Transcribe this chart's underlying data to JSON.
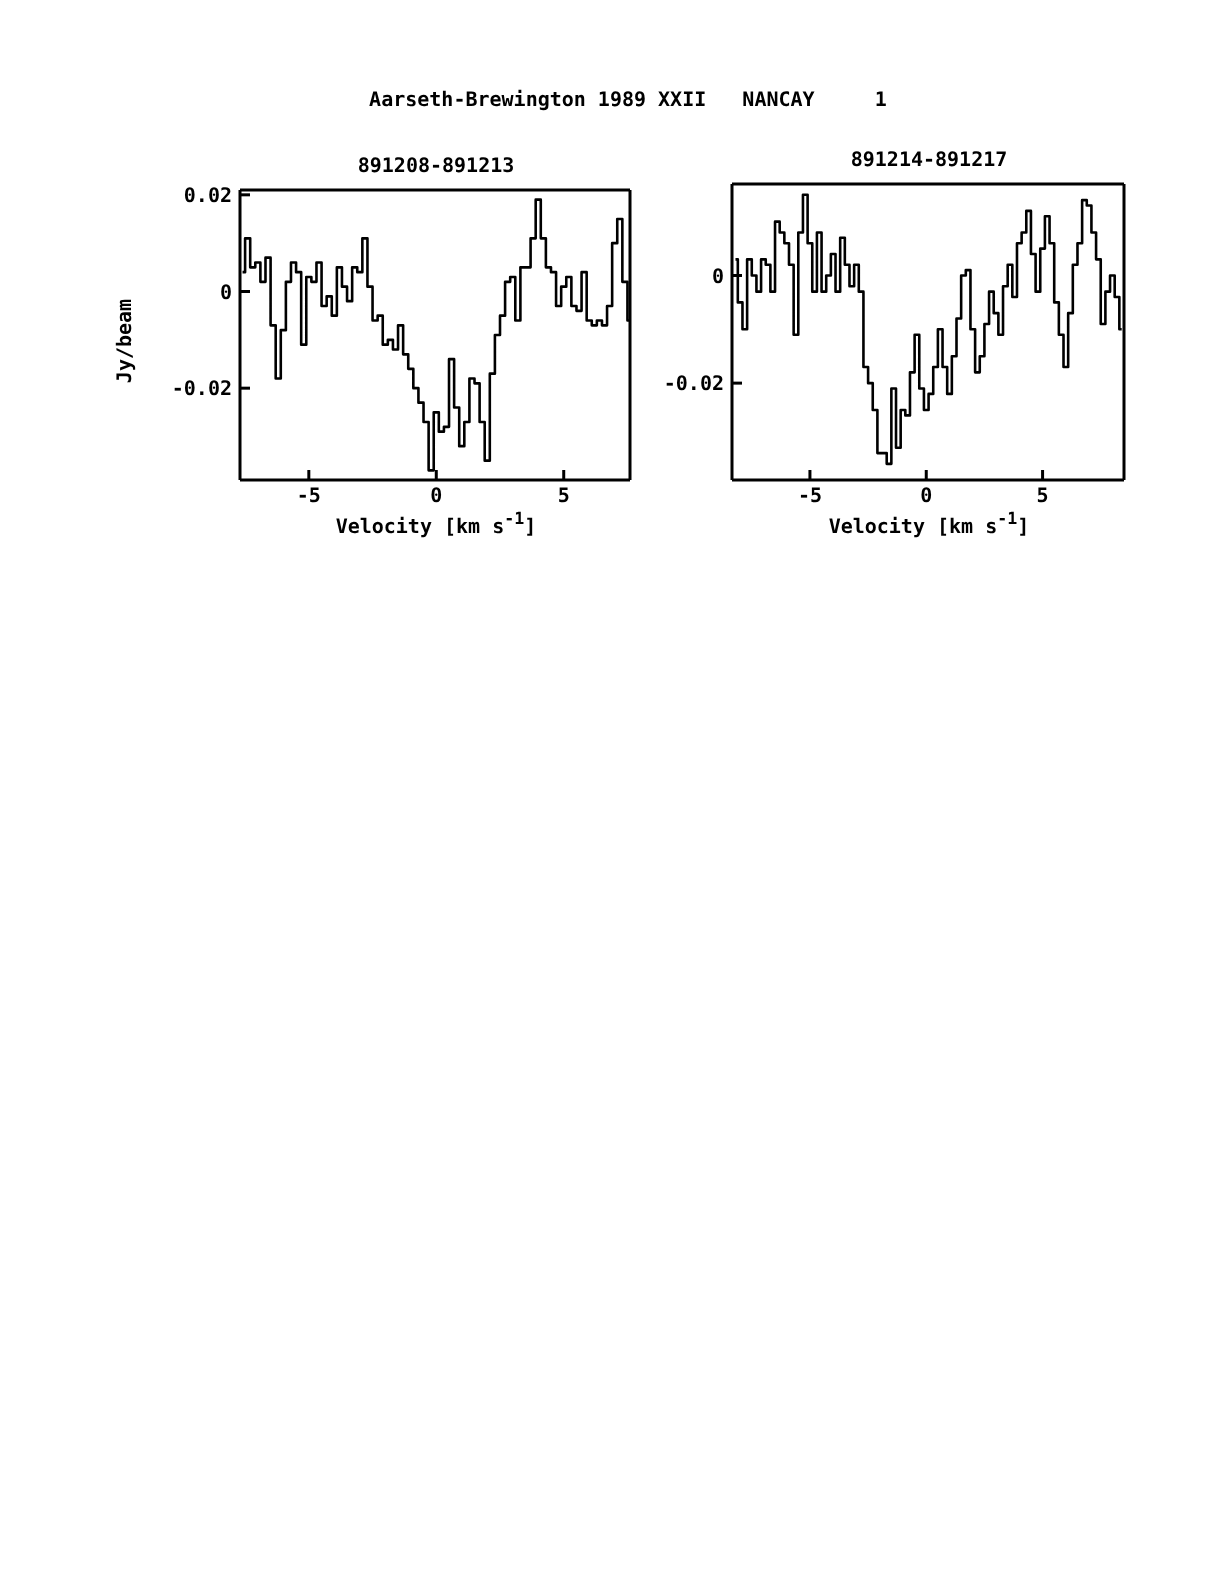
{
  "chart_data": [
    {
      "type": "step",
      "annotations": [
        "Aarseth-Brewington 1989 XXII   NANCAY     1"
      ],
      "title": "891208-891213",
      "xlabel": "Velocity [km s$^{-1}$]",
      "ylabel": "Jy/beam",
      "xlim": [
        -7.7,
        7.6
      ],
      "ylim": [
        -0.039,
        0.021
      ],
      "xticks": [
        -5,
        0,
        5
      ],
      "yticks": [
        -0.02,
        0,
        0.02
      ],
      "series": [
        {
          "color": "#000000",
          "x": [
            -7.6,
            -7.4,
            -7.2,
            -7.0,
            -6.8,
            -6.6,
            -6.4,
            -6.2,
            -6.0,
            -5.8,
            -5.6,
            -5.4,
            -5.2,
            -5.0,
            -4.8,
            -4.6,
            -4.4,
            -4.2,
            -4.0,
            -3.8,
            -3.6,
            -3.4,
            -3.2,
            -3.0,
            -2.8,
            -2.6,
            -2.4,
            -2.2,
            -2.0,
            -1.8,
            -1.6,
            -1.4,
            -1.2,
            -1.0,
            -0.8,
            -0.6,
            -0.4,
            -0.2,
            0.0,
            0.2,
            0.4,
            0.6,
            0.8,
            1.0,
            1.2,
            1.4,
            1.6,
            1.8,
            2.0,
            2.2,
            2.4,
            2.6,
            2.8,
            3.0,
            3.2,
            3.4,
            3.6,
            3.8,
            4.0,
            4.2,
            4.4,
            4.6,
            4.8,
            5.0,
            5.2,
            5.4,
            5.6,
            5.8,
            6.0,
            6.2,
            6.4,
            6.6,
            6.8,
            7.0,
            7.2,
            7.4,
            7.6
          ],
          "values": [
            0.004,
            0.011,
            0.005,
            0.006,
            0.002,
            0.007,
            -0.007,
            -0.018,
            -0.008,
            0.002,
            0.006,
            0.004,
            -0.011,
            0.003,
            0.002,
            0.006,
            -0.003,
            -0.001,
            -0.005,
            0.005,
            0.001,
            -0.002,
            0.005,
            0.004,
            0.011,
            0.001,
            -0.006,
            -0.005,
            -0.011,
            -0.01,
            -0.012,
            -0.007,
            -0.013,
            -0.016,
            -0.02,
            -0.023,
            -0.027,
            -0.037,
            -0.025,
            -0.029,
            -0.028,
            -0.014,
            -0.024,
            -0.032,
            -0.027,
            -0.018,
            -0.019,
            -0.027,
            -0.035,
            -0.017,
            -0.009,
            -0.005,
            0.002,
            0.003,
            -0.006,
            0.005,
            0.005,
            0.011,
            0.019,
            0.011,
            0.005,
            0.004,
            -0.003,
            0.001,
            0.003,
            -0.003,
            -0.004,
            0.004,
            -0.006,
            -0.007,
            -0.006,
            -0.007,
            -0.003,
            0.01,
            0.015,
            0.002,
            -0.006
          ]
        }
      ]
    },
    {
      "type": "step",
      "title": "891214-891217",
      "xlabel": "Velocity [km s$^{-1}$]",
      "xlim": [
        -8.35,
        8.5
      ],
      "ylim": [
        -0.038,
        0.017
      ],
      "xticks": [
        -5,
        0,
        5
      ],
      "yticks": [
        -0.02,
        0
      ],
      "series": [
        {
          "color": "#000000",
          "x": [
            -8.2,
            -8.0,
            -7.8,
            -7.6,
            -7.4,
            -7.2,
            -7.0,
            -6.8,
            -6.6,
            -6.4,
            -6.2,
            -6.0,
            -5.8,
            -5.6,
            -5.4,
            -5.2,
            -5.0,
            -4.8,
            -4.6,
            -4.4,
            -4.2,
            -4.0,
            -3.8,
            -3.6,
            -3.4,
            -3.2,
            -3.0,
            -2.8,
            -2.6,
            -2.4,
            -2.2,
            -2.0,
            -1.8,
            -1.6,
            -1.4,
            -1.2,
            -1.0,
            -0.8,
            -0.6,
            -0.4,
            -0.2,
            0.0,
            0.2,
            0.4,
            0.6,
            0.8,
            1.0,
            1.2,
            1.4,
            1.6,
            1.8,
            2.0,
            2.2,
            2.4,
            2.6,
            2.8,
            3.0,
            3.2,
            3.4,
            3.6,
            3.8,
            4.0,
            4.2,
            4.4,
            4.6,
            4.8,
            5.0,
            5.2,
            5.4,
            5.6,
            5.8,
            6.0,
            6.2,
            6.4,
            6.6,
            6.8,
            7.0,
            7.2,
            7.4,
            7.6,
            7.8,
            8.0,
            8.2,
            8.4
          ],
          "values": [
            0.003,
            -0.005,
            -0.01,
            0.003,
            0.0,
            -0.003,
            0.003,
            0.002,
            -0.003,
            0.01,
            0.008,
            0.006,
            0.002,
            -0.011,
            0.008,
            0.015,
            0.006,
            -0.003,
            0.008,
            -0.003,
            0.0,
            0.004,
            -0.003,
            0.007,
            0.002,
            -0.002,
            0.002,
            -0.003,
            -0.017,
            -0.02,
            -0.025,
            -0.033,
            -0.033,
            -0.035,
            -0.021,
            -0.032,
            -0.025,
            -0.026,
            -0.018,
            -0.011,
            -0.021,
            -0.025,
            -0.022,
            -0.017,
            -0.01,
            -0.017,
            -0.022,
            -0.015,
            -0.008,
            0.0,
            0.001,
            -0.01,
            -0.018,
            -0.015,
            -0.009,
            -0.003,
            -0.007,
            -0.011,
            -0.002,
            0.002,
            -0.004,
            0.006,
            0.008,
            0.012,
            0.004,
            -0.003,
            0.005,
            0.011,
            0.006,
            -0.005,
            -0.011,
            -0.017,
            -0.007,
            0.002,
            0.006,
            0.014,
            0.013,
            0.008,
            0.003,
            -0.009,
            -0.003,
            0.0,
            -0.004,
            -0.01
          ]
        }
      ]
    }
  ]
}
